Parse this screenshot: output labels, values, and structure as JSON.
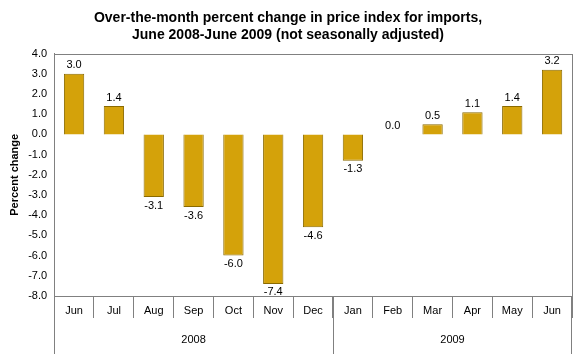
{
  "chart_data": {
    "type": "bar",
    "title": [
      "Over-the-month percent change in price index for imports,",
      "June 2008-June 2009 (not seasonally adjusted)"
    ],
    "y_label": "Percent change",
    "categories": [
      "Jun",
      "Jul",
      "Aug",
      "Sep",
      "Oct",
      "Nov",
      "Dec",
      "Jan",
      "Feb",
      "Mar",
      "Apr",
      "May",
      "Jun"
    ],
    "category_groups": [
      "2008",
      "2008",
      "2008",
      "2008",
      "2008",
      "2008",
      "2008",
      "2009",
      "2009",
      "2009",
      "2009",
      "2009",
      "2009"
    ],
    "values": [
      3.0,
      1.4,
      -3.1,
      -3.6,
      -6.0,
      -7.4,
      -4.6,
      -1.3,
      0.0,
      0.5,
      1.1,
      1.4,
      3.2
    ],
    "value_labels": [
      "3.0",
      "1.4",
      "-3.1",
      "-3.6",
      "-6.0",
      "-7.4",
      "-4.6",
      "-1.3",
      "0.0",
      "0.5",
      "1.1",
      "1.4",
      "3.2"
    ],
    "color": "#d4a20a",
    "ylim": [
      -8,
      4
    ],
    "yticks": [
      {
        "value": -8,
        "label": "-8.0"
      },
      {
        "value": -7,
        "label": "-7.0"
      },
      {
        "value": -6,
        "label": "-6.0"
      },
      {
        "value": -5,
        "label": "-5.0"
      },
      {
        "value": -4,
        "label": "-4.0"
      },
      {
        "value": -3,
        "label": "-3.0"
      },
      {
        "value": -2,
        "label": "-2.0"
      },
      {
        "value": -1,
        "label": "-1.0"
      },
      {
        "value": 0,
        "label": "0.0"
      },
      {
        "value": 1,
        "label": "1.0"
      },
      {
        "value": 2,
        "label": "2.0"
      },
      {
        "value": 3,
        "label": "3.0"
      },
      {
        "value": 4,
        "label": "4.0"
      }
    ],
    "grid": false,
    "data_labels": true
  }
}
